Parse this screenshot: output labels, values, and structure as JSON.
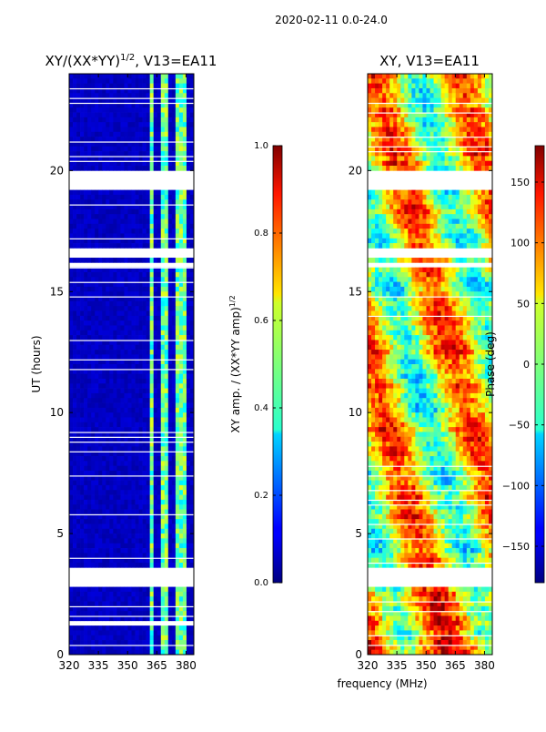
{
  "figure": {
    "suptitle": "2020-02-11 0.0-24.0",
    "shared_xlabel": "frequency (MHz)"
  },
  "chart_data": [
    {
      "type": "heatmap",
      "title": "XY/(XX*YY)",
      "title_superscript": "1/2",
      "title_suffix": ", V13=EA11",
      "xlabel": "",
      "ylabel": "UT (hours)",
      "xlim": [
        320,
        384
      ],
      "ylim": [
        0,
        24
      ],
      "x_ticks": [
        320,
        335,
        350,
        365,
        380
      ],
      "y_ticks": [
        0,
        5,
        10,
        15,
        20
      ],
      "colormap": "jet",
      "colorbar": {
        "label": "XY amp. / (XX*YY amp)",
        "label_superscript": "1/2",
        "range": [
          0.0,
          1.0
        ],
        "ticks": [
          0.0,
          0.2,
          0.4,
          0.6,
          0.8,
          1.0
        ],
        "tick_labels": [
          "0.0",
          "0.2",
          "0.4",
          "0.6",
          "0.8",
          "1.0"
        ]
      },
      "flagged_hours": [
        [
          1.2,
          1.35
        ],
        [
          2.8,
          3.5
        ],
        [
          16.0,
          16.2
        ],
        [
          16.4,
          16.7
        ],
        [
          19.2,
          19.9
        ]
      ],
      "bright_frequency_bands_mhz": [
        [
          361,
          364
        ],
        [
          368,
          371
        ],
        [
          374,
          378
        ],
        [
          379,
          381
        ]
      ],
      "typical_amp_outside_bands": 0.05,
      "typical_amp_inside_bands": 0.45
    },
    {
      "type": "heatmap",
      "title": "XY, V13=EA11",
      "xlabel": "frequency (MHz)",
      "ylabel": "",
      "xlim": [
        320,
        384
      ],
      "ylim": [
        0,
        24
      ],
      "x_ticks": [
        320,
        335,
        350,
        365,
        380
      ],
      "y_ticks": [
        0,
        5,
        10,
        15,
        20
      ],
      "colormap": "jet",
      "colorbar": {
        "label": "Phase (deg)",
        "range": [
          -180,
          180
        ],
        "ticks": [
          -150,
          -100,
          -50,
          0,
          50,
          100,
          150
        ],
        "tick_labels": [
          "−150",
          "−100",
          "−50",
          "0",
          "50",
          "100",
          "150"
        ]
      },
      "flagged_hours": [
        [
          2.8,
          3.5
        ],
        [
          16.0,
          16.2
        ],
        [
          16.4,
          16.7
        ],
        [
          19.2,
          19.9
        ]
      ],
      "phase_structure": "noisy, mostly between -90 and 180 deg"
    }
  ]
}
